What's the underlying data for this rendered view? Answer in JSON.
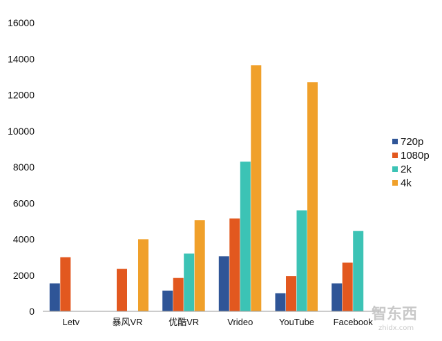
{
  "chart_data": {
    "type": "bar",
    "title": "",
    "xlabel": "",
    "ylabel": "",
    "categories": [
      "Letv",
      "暴风VR",
      "优酷VR",
      "Vrideo",
      "YouTube",
      "Facebook"
    ],
    "series": [
      {
        "name": "720p",
        "color": "#2f5597",
        "values": [
          1550,
          null,
          1150,
          3050,
          1000,
          1550
        ]
      },
      {
        "name": "1080p",
        "color": "#e2581f",
        "values": [
          3000,
          2350,
          1850,
          5150,
          1950,
          2700
        ]
      },
      {
        "name": "2k",
        "color": "#3cc3b5",
        "values": [
          null,
          null,
          3200,
          8300,
          5600,
          4450
        ]
      },
      {
        "name": "4k",
        "color": "#f0a02a",
        "values": [
          null,
          4000,
          5050,
          13650,
          12700,
          null
        ]
      }
    ],
    "ylim": [
      0,
      16000
    ],
    "yticks": [
      0,
      2000,
      4000,
      6000,
      8000,
      10000,
      12000,
      14000,
      16000
    ],
    "grid": false,
    "legend_position": "right"
  },
  "watermark": {
    "main": "智东西",
    "sub": "zhidx.com"
  }
}
